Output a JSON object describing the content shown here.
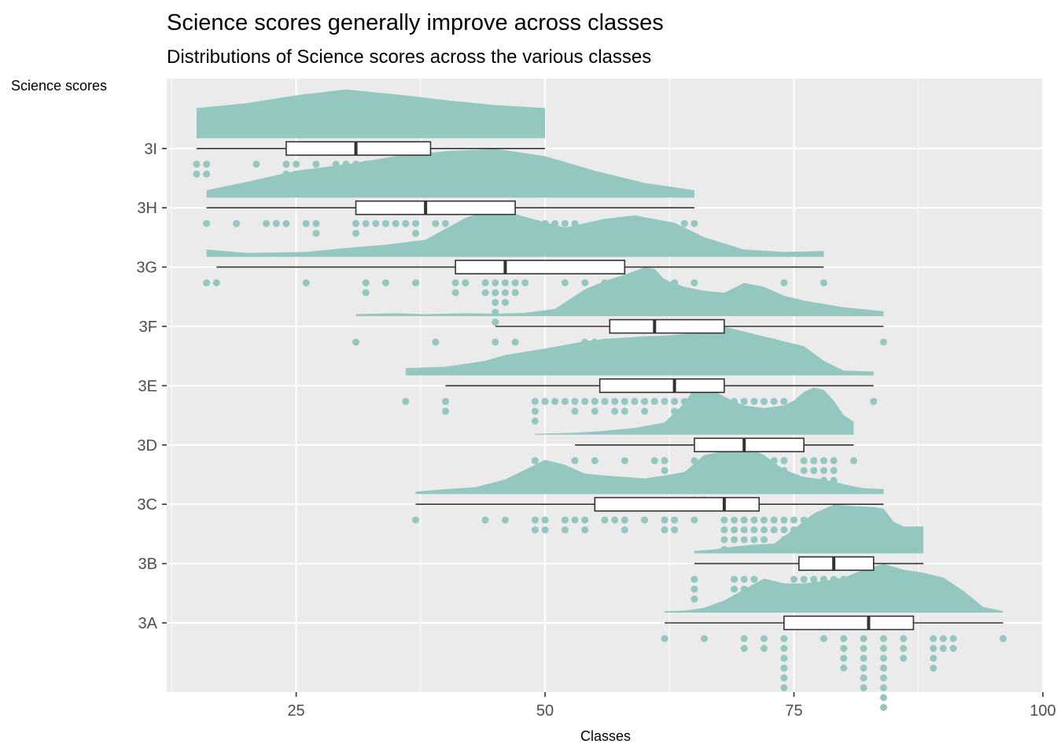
{
  "chart_data": {
    "type": "raincloud",
    "title": "Science scores generally improve across classes",
    "subtitle": "Distributions of Science scores across the various classes",
    "xlabel": "Classes",
    "ylabel": "Science scores",
    "xlim": [
      12,
      100
    ],
    "x_ticks": [
      25,
      50,
      75,
      100
    ],
    "categories": [
      "3A",
      "3B",
      "3C",
      "3D",
      "3E",
      "3F",
      "3G",
      "3H",
      "3I"
    ],
    "grid": true,
    "colors": {
      "cloud": "#93c7c0",
      "points": "#93c7c0",
      "panel": "#ebebeb",
      "grid": "#ffffff",
      "box_line": "#333333"
    },
    "groups": [
      {
        "class": "3A",
        "box": {
          "min": 62,
          "q1": 74,
          "median": 82.5,
          "q3": 87,
          "max": 96
        },
        "density": [
          [
            62,
            0.03
          ],
          [
            64,
            0.04
          ],
          [
            66,
            0.1
          ],
          [
            68,
            0.25
          ],
          [
            70,
            0.48
          ],
          [
            72,
            0.7
          ],
          [
            74,
            0.6
          ],
          [
            76,
            0.6
          ],
          [
            78,
            0.65
          ],
          [
            80,
            0.72
          ],
          [
            82,
            0.88
          ],
          [
            84,
            1
          ],
          [
            86,
            0.88
          ],
          [
            88,
            0.82
          ],
          [
            90,
            0.72
          ],
          [
            92,
            0.45
          ],
          [
            94,
            0.12
          ],
          [
            96,
            0.03
          ]
        ],
        "points": [
          62,
          66,
          70,
          70,
          72,
          72,
          74,
          74,
          74,
          74,
          74,
          74,
          78,
          80,
          80,
          80,
          80,
          82,
          82,
          82,
          82,
          82,
          82,
          84,
          84,
          84,
          84,
          84,
          84,
          84,
          84,
          86,
          86,
          86,
          89,
          89,
          89,
          89,
          90,
          90,
          91,
          91,
          96
        ]
      },
      {
        "class": "3B",
        "box": {
          "min": 65,
          "q1": 75.5,
          "median": 79,
          "q3": 83,
          "max": 88
        },
        "density": [
          [
            65,
            0.05
          ],
          [
            67,
            0.08
          ],
          [
            69,
            0.14
          ],
          [
            71,
            0.18
          ],
          [
            73,
            0.2
          ],
          [
            75,
            0.5
          ],
          [
            77,
            0.82
          ],
          [
            79,
            1
          ],
          [
            81,
            0.97
          ],
          [
            83,
            0.95
          ],
          [
            84,
            0.92
          ],
          [
            85,
            0.65
          ],
          [
            86,
            0.55
          ],
          [
            87,
            0.55
          ],
          [
            88,
            0.55
          ]
        ],
        "points": [
          65,
          65,
          65,
          69,
          69,
          70,
          70,
          71,
          71,
          71,
          75,
          75,
          75,
          76,
          76,
          77,
          77,
          78,
          78,
          78,
          79,
          79,
          79,
          80,
          80,
          80,
          81,
          81,
          82,
          82,
          83,
          84,
          84,
          84,
          85,
          85,
          88
        ]
      },
      {
        "class": "3C",
        "box": {
          "min": 37,
          "q1": 55,
          "median": 68,
          "q3": 71.5,
          "max": 84
        },
        "density": [
          [
            37,
            0.05
          ],
          [
            40,
            0.1
          ],
          [
            43,
            0.14
          ],
          [
            46,
            0.3
          ],
          [
            48,
            0.5
          ],
          [
            50,
            0.7
          ],
          [
            52,
            0.6
          ],
          [
            54,
            0.42
          ],
          [
            56,
            0.38
          ],
          [
            58,
            0.35
          ],
          [
            60,
            0.32
          ],
          [
            62,
            0.38
          ],
          [
            64,
            0.45
          ],
          [
            66,
            0.8
          ],
          [
            68,
            0.88
          ],
          [
            69,
            0.92
          ],
          [
            70,
            1
          ],
          [
            72,
            0.8
          ],
          [
            74,
            0.5
          ],
          [
            76,
            0.35
          ],
          [
            78,
            0.3
          ],
          [
            80,
            0.2
          ],
          [
            82,
            0.12
          ],
          [
            84,
            0.1
          ]
        ],
        "points": [
          37,
          44,
          46,
          49,
          49,
          50,
          50,
          52,
          52,
          53,
          54,
          54,
          56,
          57,
          58,
          58,
          60,
          62,
          62,
          63,
          63,
          65,
          68,
          68,
          68,
          68,
          69,
          69,
          69,
          70,
          70,
          70,
          71,
          71,
          71,
          72,
          72,
          72,
          72,
          73,
          73,
          74,
          74,
          74,
          75,
          75,
          76
        ]
      },
      {
        "class": "3D",
        "box": {
          "min": 53,
          "q1": 65,
          "median": 70,
          "q3": 76,
          "max": 81
        },
        "density": [
          [
            49,
            0.02
          ],
          [
            53,
            0.04
          ],
          [
            56,
            0.08
          ],
          [
            59,
            0.14
          ],
          [
            62,
            0.25
          ],
          [
            63,
            0.45
          ],
          [
            64,
            0.65
          ],
          [
            65,
            0.95
          ],
          [
            66,
            1
          ],
          [
            67,
            0.9
          ],
          [
            68,
            0.78
          ],
          [
            70,
            0.6
          ],
          [
            72,
            0.55
          ],
          [
            74,
            0.6
          ],
          [
            75,
            0.7
          ],
          [
            76,
            0.88
          ],
          [
            77,
            0.97
          ],
          [
            78,
            0.92
          ],
          [
            79,
            0.7
          ],
          [
            80,
            0.4
          ],
          [
            81,
            0.27
          ]
        ],
        "points": [
          49,
          53,
          55,
          58,
          61,
          62,
          62,
          65,
          65,
          65,
          65,
          65,
          66,
          66,
          66,
          66,
          66,
          67,
          67,
          67,
          67,
          68,
          68,
          69,
          69,
          69,
          70,
          70,
          70,
          70,
          71,
          72,
          72,
          72,
          72,
          73,
          73,
          73,
          74,
          74,
          74,
          74,
          76,
          76,
          76,
          77,
          77,
          78,
          78,
          78,
          79,
          79,
          79,
          81
        ]
      },
      {
        "class": "3E",
        "box": {
          "min": 40,
          "q1": 55.5,
          "median": 63,
          "q3": 68,
          "max": 83
        },
        "density": [
          [
            36,
            0.15
          ],
          [
            40,
            0.18
          ],
          [
            44,
            0.3
          ],
          [
            46,
            0.42
          ],
          [
            50,
            0.55
          ],
          [
            54,
            0.7
          ],
          [
            56,
            0.75
          ],
          [
            60,
            0.8
          ],
          [
            62,
            0.82
          ],
          [
            64,
            0.85
          ],
          [
            68,
            1
          ],
          [
            70,
            0.9
          ],
          [
            72,
            0.8
          ],
          [
            74,
            0.7
          ],
          [
            76,
            0.6
          ],
          [
            78,
            0.3
          ],
          [
            80,
            0.1
          ],
          [
            83,
            0.08
          ]
        ],
        "points": [
          36,
          40,
          40,
          49,
          49,
          49,
          50,
          51,
          52,
          53,
          53,
          54,
          55,
          55,
          56,
          57,
          57,
          58,
          58,
          59,
          60,
          60,
          61,
          62,
          63,
          63,
          64,
          65,
          66,
          66,
          67,
          67,
          68,
          69,
          69,
          70,
          70,
          71,
          72,
          73,
          74,
          76,
          77,
          78,
          83
        ]
      },
      {
        "class": "3F",
        "box": {
          "min": 45,
          "q1": 56.5,
          "median": 61,
          "q3": 68,
          "max": 84
        },
        "density": [
          [
            31,
            0.04
          ],
          [
            35,
            0.06
          ],
          [
            38,
            0.04
          ],
          [
            42,
            0.06
          ],
          [
            45,
            0.05
          ],
          [
            48,
            0.07
          ],
          [
            51,
            0.15
          ],
          [
            54,
            0.55
          ],
          [
            56,
            0.72
          ],
          [
            58,
            0.85
          ],
          [
            60,
            1
          ],
          [
            61,
            0.97
          ],
          [
            62,
            0.75
          ],
          [
            64,
            0.6
          ],
          [
            66,
            0.52
          ],
          [
            68,
            0.48
          ],
          [
            70,
            0.68
          ],
          [
            72,
            0.6
          ],
          [
            74,
            0.42
          ],
          [
            76,
            0.32
          ],
          [
            78,
            0.25
          ],
          [
            80,
            0.18
          ],
          [
            84,
            0.1
          ]
        ],
        "points": [
          31,
          39,
          45,
          47,
          54,
          54,
          55,
          56,
          56,
          57,
          58,
          58,
          58,
          59,
          60,
          60,
          61,
          61,
          62,
          62,
          63,
          63,
          65,
          65,
          66,
          67,
          68,
          68,
          69,
          70,
          71,
          72,
          72,
          73,
          84
        ]
      },
      {
        "class": "3G",
        "box": {
          "min": 17,
          "q1": 41,
          "median": 46,
          "q3": 58,
          "max": 78
        },
        "density": [
          [
            16,
            0.15
          ],
          [
            20,
            0.08
          ],
          [
            26,
            0.1
          ],
          [
            30,
            0.18
          ],
          [
            34,
            0.25
          ],
          [
            38,
            0.35
          ],
          [
            42,
            0.8
          ],
          [
            45,
            1
          ],
          [
            48,
            0.82
          ],
          [
            52,
            0.6
          ],
          [
            56,
            0.78
          ],
          [
            59,
            0.85
          ],
          [
            63,
            0.7
          ],
          [
            66,
            0.4
          ],
          [
            70,
            0.15
          ],
          [
            74,
            0.1
          ],
          [
            78,
            0.12
          ]
        ],
        "points": [
          16,
          17,
          26,
          32,
          32,
          34,
          37,
          41,
          41,
          42,
          44,
          44,
          45,
          45,
          45,
          45,
          45,
          46,
          46,
          46,
          47,
          47,
          48,
          52,
          54,
          56,
          57,
          57,
          59,
          62,
          63,
          63,
          65,
          65,
          74,
          78
        ]
      },
      {
        "class": "3H",
        "box": {
          "min": 16,
          "q1": 31,
          "median": 38,
          "q3": 47,
          "max": 65
        },
        "density": [
          [
            16,
            0.15
          ],
          [
            20,
            0.32
          ],
          [
            25,
            0.55
          ],
          [
            30,
            0.68
          ],
          [
            35,
            0.85
          ],
          [
            40,
            0.95
          ],
          [
            45,
            1
          ],
          [
            50,
            0.85
          ],
          [
            55,
            0.55
          ],
          [
            60,
            0.3
          ],
          [
            65,
            0.15
          ]
        ],
        "points": [
          16,
          19,
          22,
          23,
          24,
          26,
          27,
          27,
          31,
          31,
          32,
          33,
          34,
          35,
          36,
          37,
          37,
          39,
          40,
          45,
          46,
          47,
          50,
          51,
          52,
          53,
          53,
          59,
          64,
          65
        ]
      },
      {
        "class": "3I",
        "box": {
          "min": 15,
          "q1": 24,
          "median": 31,
          "q3": 38.5,
          "max": 50
        },
        "density": [
          [
            15,
            0.62
          ],
          [
            20,
            0.72
          ],
          [
            25,
            0.88
          ],
          [
            30,
            1
          ],
          [
            35,
            0.9
          ],
          [
            40,
            0.78
          ],
          [
            45,
            0.68
          ],
          [
            50,
            0.62
          ]
        ],
        "points": [
          15,
          15,
          16,
          16,
          21,
          24,
          24,
          25,
          25,
          27,
          29,
          30,
          31,
          32,
          32,
          34,
          35,
          36,
          39,
          40,
          41,
          45,
          48,
          50
        ]
      }
    ]
  }
}
